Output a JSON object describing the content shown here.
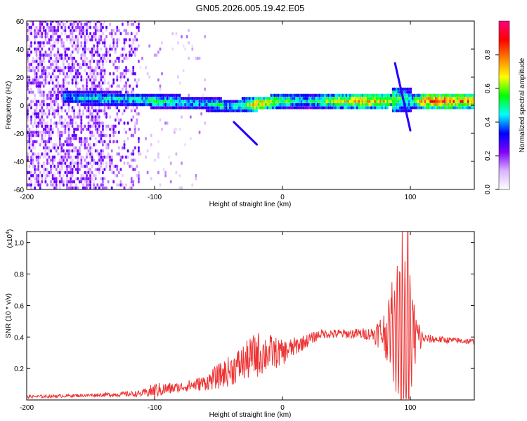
{
  "chart_data": [
    {
      "type": "heatmap",
      "title": "GN05.2026.005.19.42.E05",
      "xlabel": "Height of straight line (km)",
      "ylabel": "Frequency (Hz)",
      "xlim": [
        -200,
        150
      ],
      "ylim": [
        -60,
        60
      ],
      "x_ticks": [
        -200,
        -100,
        0,
        100
      ],
      "y_ticks": [
        -60,
        -40,
        -20,
        0,
        20,
        40,
        60
      ],
      "colorbar": {
        "label": "Normalized spectral amplitude",
        "range": [
          0,
          1
        ],
        "ticks": [
          "0.0",
          "0.2",
          "0.4",
          "0.6",
          "0.8"
        ],
        "colormap": [
          "#ffffff",
          "#d9b3ff",
          "#8000ff",
          "#0000ff",
          "#00ffff",
          "#00ff00",
          "#ffff00",
          "#ff8000",
          "#ff0000",
          "#ff0080"
        ]
      },
      "ridge": {
        "description_points_x": [
          -172,
          -150,
          -120,
          -100,
          -80,
          -60,
          -50,
          -40,
          -30,
          -20,
          -10,
          0,
          20,
          40,
          60,
          80,
          90,
          95,
          100,
          110,
          130,
          150
        ],
        "frequency_hz": [
          5,
          4,
          3,
          2,
          1,
          0,
          -1,
          -2,
          -1,
          0,
          1,
          2,
          2,
          2,
          2,
          2,
          3,
          3,
          2,
          2,
          2,
          2
        ],
        "amplitude": [
          0.45,
          0.5,
          0.5,
          0.55,
          0.5,
          0.45,
          0.55,
          0.45,
          0.6,
          0.8,
          0.7,
          0.6,
          0.5,
          0.7,
          0.8,
          0.75,
          0.6,
          0.55,
          0.5,
          0.9,
          0.9,
          0.85
        ]
      }
    },
    {
      "type": "line",
      "xlabel": "Height of straight line (km)",
      "ylabel": "SNR (10 * v/v)",
      "y_multiplier": "(x10",
      "y_multiplier_exp": "4",
      "y_multiplier_close": ")",
      "xlim": [
        -200,
        150
      ],
      "ylim": [
        0,
        1.07
      ],
      "x_ticks": [
        -200,
        -100,
        0,
        100
      ],
      "y_ticks": [
        0.2,
        0.4,
        0.6,
        0.8,
        1.0
      ],
      "series": [
        {
          "color": "#ee3333",
          "envelope_x": [
            -200,
            -150,
            -110,
            -100,
            -80,
            -60,
            -50,
            -40,
            -30,
            -20,
            -10,
            0,
            20,
            30,
            50,
            70,
            80,
            90,
            95,
            100,
            110,
            130,
            150
          ],
          "baseline": [
            0.02,
            0.03,
            0.04,
            0.06,
            0.08,
            0.11,
            0.15,
            0.19,
            0.24,
            0.29,
            0.3,
            0.3,
            0.38,
            0.42,
            0.42,
            0.42,
            0.43,
            0.42,
            0.4,
            0.4,
            0.39,
            0.38,
            0.37
          ],
          "noise": [
            0.01,
            0.01,
            0.02,
            0.05,
            0.03,
            0.05,
            0.08,
            0.1,
            0.12,
            0.15,
            0.12,
            0.08,
            0.04,
            0.03,
            0.03,
            0.04,
            0.15,
            0.35,
            0.6,
            0.35,
            0.03,
            0.02,
            0.02
          ],
          "peak": {
            "x": 98,
            "y": 1.07
          }
        }
      ]
    }
  ]
}
